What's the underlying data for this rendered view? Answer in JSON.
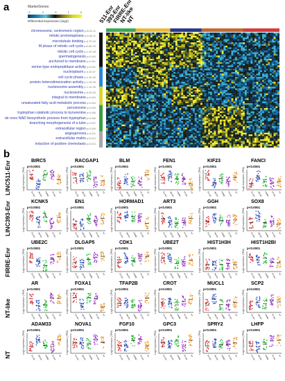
{
  "panel_a": {
    "letter": "a",
    "legend": {
      "title": "MarkerGenes",
      "subtitle": "Differential Expression (log2)",
      "ticks": [
        "-2",
        "-1",
        "0",
        "1",
        "2"
      ]
    },
    "columns": [
      "511-Enr",
      "393-Enr",
      "FIRRE-Enr",
      "NT-like",
      "NT"
    ],
    "column_colors": [
      "#3aa655",
      "#e8b838",
      "#2a3a8a",
      "#c06a30",
      "#d83a3a"
    ],
    "side_colors": [
      "#111111",
      "#2a8ad8",
      "#d8d828",
      "#3aa040",
      "#a8a8a8"
    ],
    "go_terms": [
      {
        "label": "chromosome, centromeric region",
        "p": "p=8.1E-11"
      },
      {
        "label": "mitotic prometaphase",
        "p": "p=4.6E-11"
      },
      {
        "label": "microtubule binding",
        "p": "p=6.7E-09"
      },
      {
        "label": "M phase of mitotic cell cycle",
        "p": "p=6.8E-09"
      },
      {
        "label": "mitotic cell cycle",
        "p": "p=1.4E-08"
      },
      {
        "label": "spermatogenesis",
        "p": "p=0.000"
      },
      {
        "label": "anchored to membrane",
        "p": "p=0.001"
      },
      {
        "label": "serine-type endopeptidase activity",
        "p": "p=0.001"
      },
      {
        "label": "nucleoplasm",
        "p": "p=4.1E-07"
      },
      {
        "label": "cell cycle phase",
        "p": "p=1.4E-06"
      },
      {
        "label": "protein heterodimerization activity",
        "p": "p=1.0E-05"
      },
      {
        "label": "nucleosome assembly",
        "p": "p=1.1E-05"
      },
      {
        "label": "nucleosome",
        "p": "p=6.0E-05"
      },
      {
        "label": "integral to membrane",
        "p": "p=0.003"
      },
      {
        "label": "unsaturated fatty acid metabolic process",
        "p": "p=0.004"
      },
      {
        "label": "peroxisome",
        "p": "p=0.005"
      },
      {
        "label": "tryptophan catabolic process to kynurenine",
        "p": "p=0.006"
      },
      {
        "label": "de novo NAD biosynthetic process from tryptophan",
        "p": "p=0.006"
      },
      {
        "label": "branching morphogenesis of a tube",
        "p": "p=0.007"
      },
      {
        "label": "extracellular region",
        "p": "p=0.009"
      },
      {
        "label": "angiogenesis",
        "p": "p=0.011"
      },
      {
        "label": "extracellular matrix",
        "p": "p=0.012"
      },
      {
        "label": "induction of positive chemotaxis",
        "p": "p=0.012"
      }
    ]
  },
  "panel_b": {
    "letter": "b",
    "pvalue": "p<0.0001",
    "ylabel": "Log2 expression (TPM)",
    "groups": [
      "511-Enr",
      "393-Enr",
      "FIRRE-Enr",
      "NT-like",
      "NT"
    ],
    "group_colors": [
      "#e03030",
      "#2850c8",
      "#28b838",
      "#a030d0",
      "#f09828"
    ],
    "rows": [
      {
        "label": "LINC511-Enr",
        "genes": [
          "BIRC5",
          "RACGAP1",
          "BLM",
          "FEN1",
          "KIF23",
          "FANCI"
        ]
      },
      {
        "label": "LINC393-Enr",
        "genes": [
          "KCNK5",
          "EN1",
          "HORMAD1",
          "ART3",
          "GGH",
          "SOX8"
        ]
      },
      {
        "label": "FIRRE-Enr",
        "genes": [
          "UBE2C",
          "DLGAP5",
          "CDK1",
          "UBE2T",
          "HIST1H3H",
          "HIST1H2BI"
        ]
      },
      {
        "label": "NT-like",
        "genes": [
          "AR",
          "FOXA1",
          "TFAP2B",
          "CROT",
          "MUCL1",
          "SCP2"
        ]
      },
      {
        "label": "NT",
        "genes": [
          "ADAM33",
          "NOVA1",
          "FGF10",
          "GPC3",
          "SPRY2",
          "LHFP"
        ]
      }
    ]
  }
}
